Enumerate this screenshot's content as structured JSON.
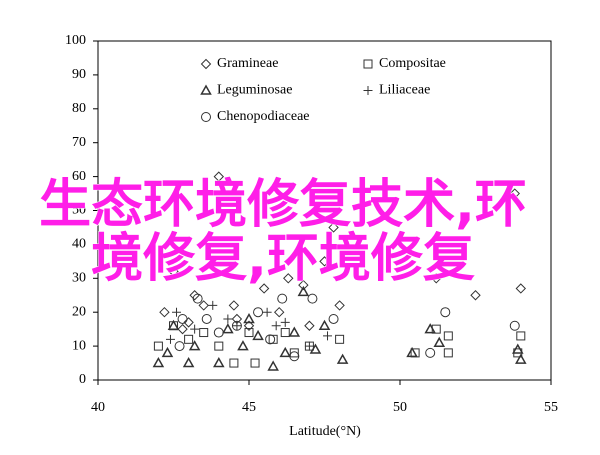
{
  "chart_data": {
    "type": "scatter",
    "x_label": "Latitude(°N)",
    "xlim": [
      40,
      55
    ],
    "xticks": [
      40,
      45,
      50,
      55
    ],
    "ylim": [
      0,
      100
    ],
    "yticks": [
      0,
      10,
      20,
      30,
      40,
      50,
      60,
      70,
      80,
      90,
      100
    ],
    "grid": false,
    "legend": "top",
    "series": [
      {
        "name": "Gramineae",
        "marker": "diamond",
        "color": "#333333",
        "x": [
          44.0,
          43.2,
          42.5,
          42.2,
          43.5,
          44.5,
          45.5,
          46.3,
          46.8,
          47.5,
          47.8,
          54.0,
          53.8,
          52.5,
          51.2,
          43.0,
          44.6,
          46.0,
          47.0,
          48.0,
          42.8,
          45.0
        ],
        "values": [
          60,
          25,
          32,
          20,
          22,
          22,
          27,
          30,
          28,
          35,
          45,
          27,
          55,
          25,
          30,
          17,
          18,
          20,
          16,
          22,
          15,
          16
        ]
      },
      {
        "name": "Compositae",
        "marker": "square",
        "color": "#333333",
        "x": [
          42.0,
          42.5,
          43.0,
          44.0,
          44.5,
          45.2,
          45.8,
          46.5,
          47.0,
          48.0,
          50.5,
          51.2,
          51.6,
          51.6,
          54.0,
          53.9,
          46.2,
          43.5,
          45.0
        ],
        "values": [
          10,
          16,
          12,
          10,
          5,
          5,
          12,
          8,
          10,
          12,
          8,
          15,
          13,
          8,
          13,
          8,
          14,
          14,
          14
        ]
      },
      {
        "name": "Leguminosae",
        "marker": "triangle",
        "color": "#333333",
        "x": [
          42.0,
          42.3,
          42.5,
          43.0,
          43.2,
          44.0,
          44.3,
          44.8,
          45.3,
          45.8,
          46.2,
          46.5,
          47.2,
          47.5,
          48.1,
          50.4,
          51.0,
          51.3,
          54.0,
          53.9,
          45.0,
          46.8
        ],
        "values": [
          5,
          8,
          16,
          5,
          10,
          5,
          15,
          10,
          13,
          4,
          8,
          14,
          9,
          16,
          6,
          8,
          15,
          11,
          6,
          9,
          18,
          26
        ]
      },
      {
        "name": "Liliaceae",
        "marker": "plus",
        "color": "#333333",
        "x": [
          42.6,
          43.8,
          44.6,
          45.6,
          46.2,
          47.0,
          47.6,
          42.4,
          44.3,
          43.2,
          45.9
        ],
        "values": [
          20,
          22,
          16,
          20,
          17,
          10,
          13,
          12,
          18,
          15,
          16
        ]
      },
      {
        "name": "Chenopodiaceae",
        "marker": "circle",
        "color": "#333333",
        "x": [
          42.8,
          43.3,
          43.6,
          44.6,
          45.3,
          46.1,
          47.1,
          47.8,
          51.5,
          53.8,
          51.0,
          46.5,
          44.0,
          42.7,
          45.7
        ],
        "values": [
          18,
          24,
          18,
          16,
          20,
          24,
          24,
          18,
          20,
          16,
          8,
          7,
          14,
          10,
          12
        ]
      }
    ]
  },
  "overlay_text": [
    "生态环境修复技术,环",
    "境修复,环境修复"
  ]
}
